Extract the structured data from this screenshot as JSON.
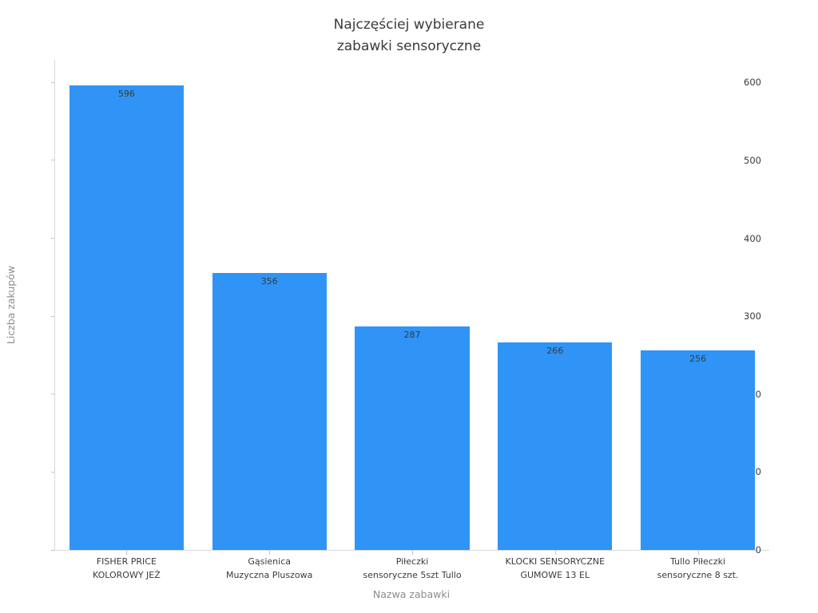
{
  "chart_data": {
    "type": "bar",
    "title": "Najczęściej wybierane\nzabawki sensoryczne",
    "xlabel": "Nazwa zabawki",
    "ylabel": "Liczba zakupów",
    "categories": [
      "FISHER PRICE\nKOLOROWY JEŻ",
      "Gąsienica\nMuzyczna Pluszowa",
      "Piłeczki\nsensoryczne 5szt Tullo",
      "KLOCKI SENSORYCZNE\nGUMOWE 13 EL",
      "Tullo Piłeczki\nsensoryczne 8 szt."
    ],
    "values": [
      596,
      356,
      287,
      266,
      256
    ],
    "bar_labels": [
      "596",
      "356",
      "287",
      "266",
      "256"
    ],
    "yticks": [
      0,
      100,
      200,
      300,
      400,
      500,
      600
    ],
    "ylim": [
      0,
      629
    ],
    "bar_width_fraction": 0.8,
    "grid": false,
    "legend": false,
    "colors": {
      "bar": "#2f94f6",
      "spine": "#d9d9d9",
      "tick": "#c4c4c4",
      "tick_label": "#3a3a3a",
      "axis_title": "#8c8c8c",
      "title": "#3a3a3a",
      "background": "#ffffff"
    }
  }
}
